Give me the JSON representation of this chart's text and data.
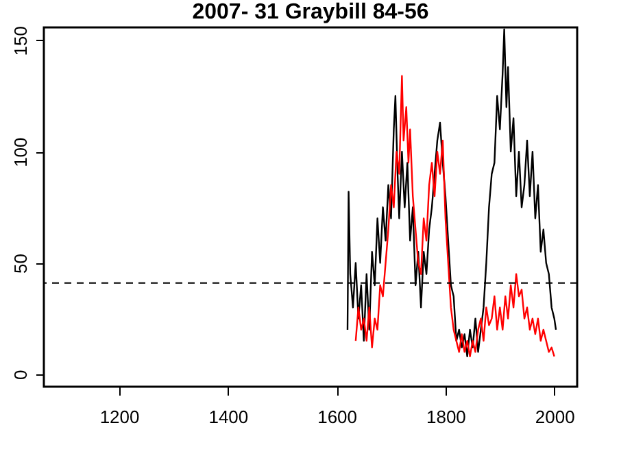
{
  "chart_data": {
    "type": "line",
    "title": "2007- 31     Graybill  84-56",
    "xlim": [
      1062,
      2042
    ],
    "xticks": [
      1200,
      1400,
      1600,
      1800,
      2000
    ],
    "ylim": [
      -5.6,
      155.8
    ],
    "yticks": [
      0,
      50,
      100,
      150
    ],
    "grid": false,
    "line_style": "solid",
    "marker": "none",
    "ref_lines": [
      {
        "axis": "y",
        "value": 41,
        "label": null,
        "color": "#000000",
        "line_style": "dashed"
      }
    ],
    "series": [
      {
        "color": "#000000",
        "x": [
          1620,
          1622,
          1625,
          1630,
          1635,
          1640,
          1645,
          1650,
          1655,
          1660,
          1665,
          1670,
          1675,
          1680,
          1685,
          1690,
          1695,
          1700,
          1705,
          1708,
          1712,
          1715,
          1720,
          1725,
          1730,
          1735,
          1740,
          1745,
          1750,
          1755,
          1760,
          1765,
          1770,
          1775,
          1780,
          1785,
          1790,
          1795,
          1800,
          1805,
          1810,
          1815,
          1820,
          1825,
          1830,
          1835,
          1840,
          1845,
          1850,
          1855,
          1860,
          1865,
          1870,
          1875,
          1880,
          1885,
          1890,
          1895,
          1900,
          1905,
          1908,
          1912,
          1915,
          1920,
          1925,
          1930,
          1935,
          1940,
          1945,
          1950,
          1955,
          1960,
          1965,
          1970,
          1975,
          1980,
          1985,
          1990,
          1995,
          2000,
          2003
        ],
        "values": [
          20,
          82,
          45,
          30,
          50,
          25,
          40,
          15,
          45,
          20,
          55,
          40,
          70,
          50,
          75,
          60,
          85,
          70,
          110,
          125,
          90,
          70,
          100,
          75,
          95,
          60,
          75,
          40,
          55,
          30,
          55,
          45,
          65,
          75,
          90,
          105,
          113,
          95,
          80,
          60,
          40,
          35,
          15,
          20,
          12,
          18,
          8,
          20,
          12,
          25,
          10,
          20,
          30,
          50,
          75,
          90,
          95,
          125,
          110,
          135,
          155,
          120,
          138,
          100,
          115,
          80,
          100,
          75,
          85,
          105,
          80,
          100,
          70,
          85,
          55,
          65,
          50,
          45,
          30,
          25,
          20
        ]
      },
      {
        "color": "#ff0000",
        "x": [
          1635,
          1640,
          1645,
          1650,
          1655,
          1660,
          1665,
          1670,
          1675,
          1680,
          1685,
          1690,
          1695,
          1700,
          1705,
          1710,
          1715,
          1720,
          1723,
          1728,
          1732,
          1735,
          1740,
          1745,
          1750,
          1755,
          1760,
          1765,
          1770,
          1775,
          1780,
          1785,
          1790,
          1795,
          1800,
          1805,
          1810,
          1815,
          1820,
          1825,
          1830,
          1835,
          1840,
          1845,
          1850,
          1855,
          1860,
          1865,
          1870,
          1875,
          1880,
          1885,
          1890,
          1895,
          1900,
          1905,
          1910,
          1915,
          1920,
          1925,
          1930,
          1935,
          1940,
          1945,
          1950,
          1955,
          1960,
          1965,
          1970,
          1975,
          1980,
          1985,
          1990,
          1995,
          2000
        ],
        "values": [
          15,
          30,
          20,
          25,
          15,
          30,
          12,
          25,
          20,
          40,
          35,
          50,
          65,
          85,
          75,
          100,
          90,
          134,
          105,
          120,
          95,
          110,
          80,
          65,
          50,
          45,
          70,
          60,
          85,
          95,
          80,
          100,
          90,
          105,
          70,
          50,
          30,
          20,
          15,
          10,
          18,
          10,
          15,
          8,
          15,
          10,
          20,
          25,
          15,
          30,
          22,
          25,
          35,
          20,
          30,
          20,
          35,
          25,
          40,
          30,
          45,
          35,
          38,
          25,
          30,
          20,
          25,
          18,
          25,
          15,
          20,
          15,
          10,
          12,
          8
        ]
      }
    ]
  }
}
